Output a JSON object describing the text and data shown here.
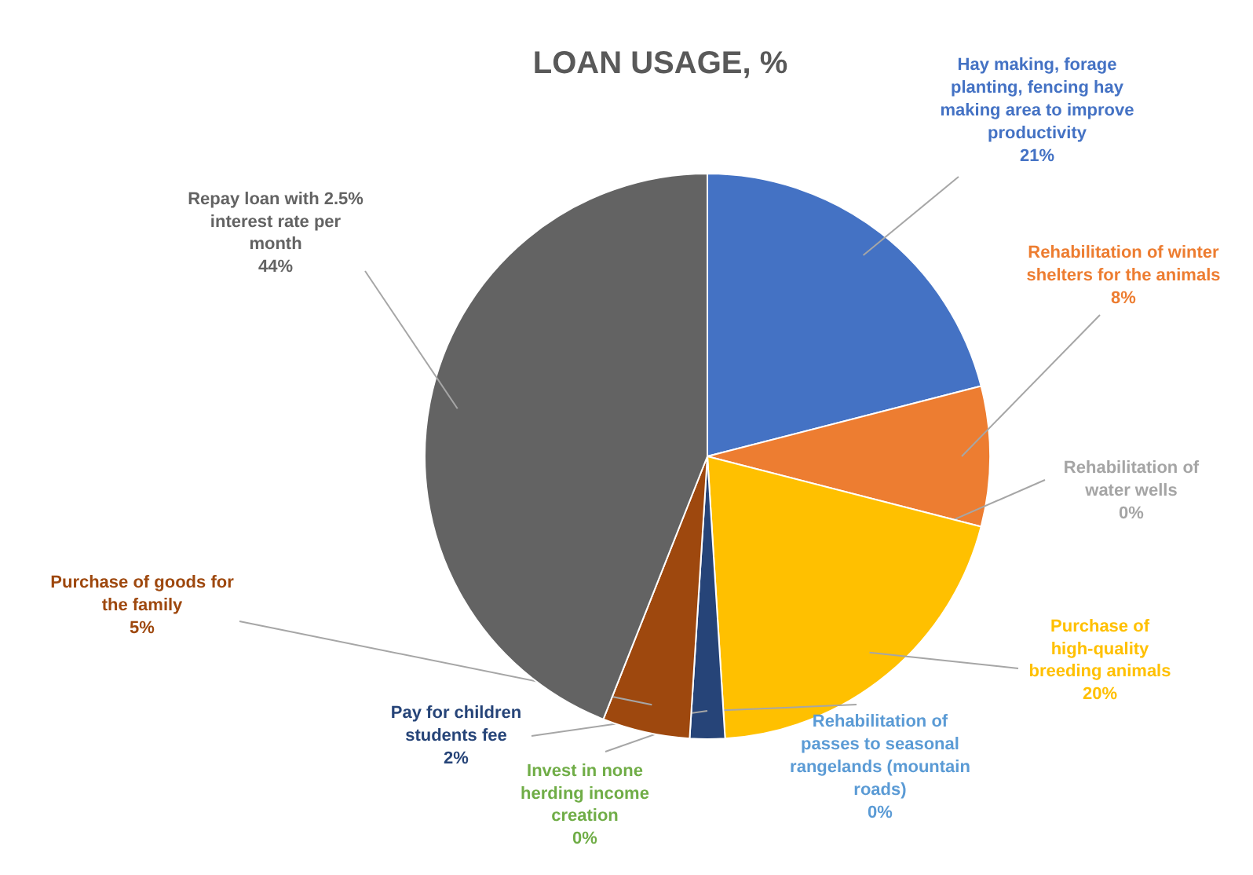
{
  "chart_data": {
    "type": "pie",
    "title": "LOAN USAGE, %",
    "categories": [
      "Hay making, forage planting, fencing hay making area to improve productivity",
      "Rehabilitation of winter shelters for the animals",
      "Rehabilitation of water wells",
      "Purchase of high-quality breeding animals",
      "Rehabilitation of passes to seasonal rangelands (mountain roads)",
      "Invest in none herding income creation",
      "Pay for children students fee",
      "Purchase of goods for the family",
      "Repay loan with 2.5% interest rate per month"
    ],
    "values": [
      21,
      8,
      0,
      20,
      0,
      0,
      2,
      5,
      44
    ],
    "value_labels": [
      "21%",
      "8%",
      "0%",
      "20%",
      "0%",
      "0%",
      "2%",
      "5%",
      "44%"
    ],
    "colors": [
      "#4472c4",
      "#ed7d31",
      "#a5a5a5",
      "#ffc000",
      "#5b9bd5",
      "#70ad47",
      "#264478",
      "#9e480e",
      "#636363"
    ]
  }
}
